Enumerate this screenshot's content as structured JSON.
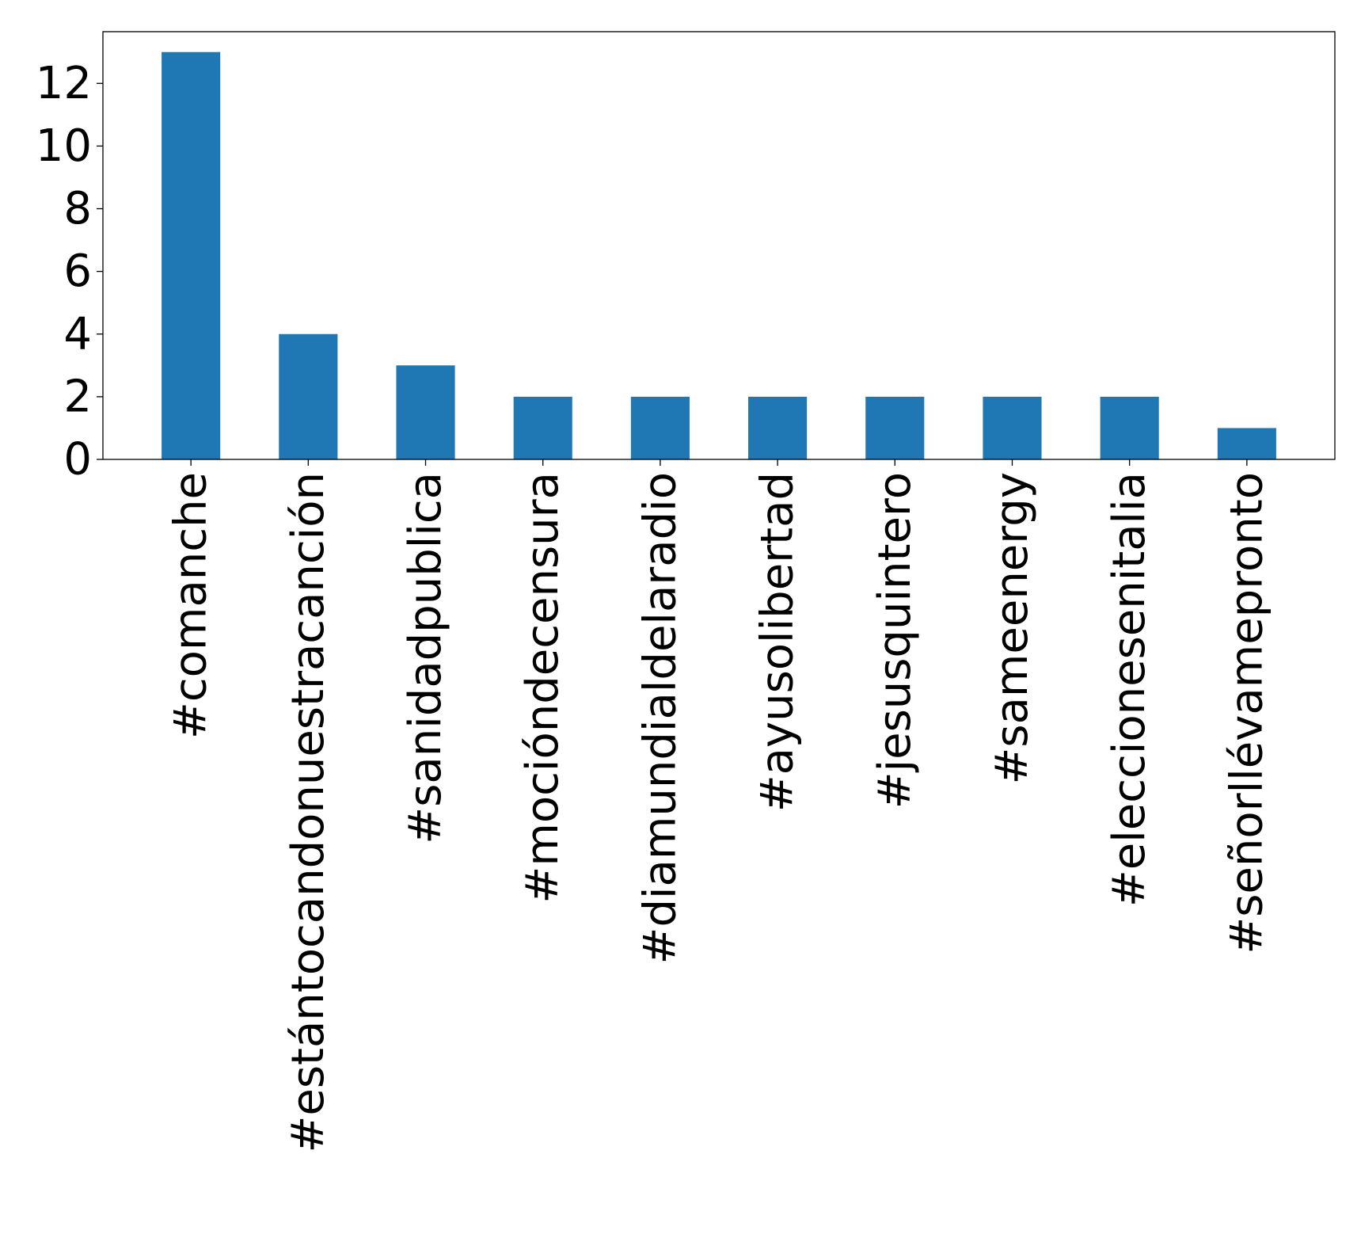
{
  "chart_data": {
    "type": "bar",
    "categories": [
      "#comanche",
      "#estántocandonuestracanción",
      "#sanidadpublica",
      "#mocióndecensura",
      "#diamundialdelaradio",
      "#ayusolibertad",
      "#jesusquintero",
      "#sameenergy",
      "#eleccionesenitalia",
      "#señorllévamepronto"
    ],
    "values": [
      13,
      4,
      3,
      2,
      2,
      2,
      2,
      2,
      2,
      1
    ],
    "yticks": [
      0,
      2,
      4,
      6,
      8,
      10,
      12
    ],
    "ylim": [
      0,
      13.65
    ],
    "bar_color": "#1f77b4",
    "title": "",
    "xlabel": "",
    "ylabel": "",
    "grid": false,
    "legend": false
  }
}
